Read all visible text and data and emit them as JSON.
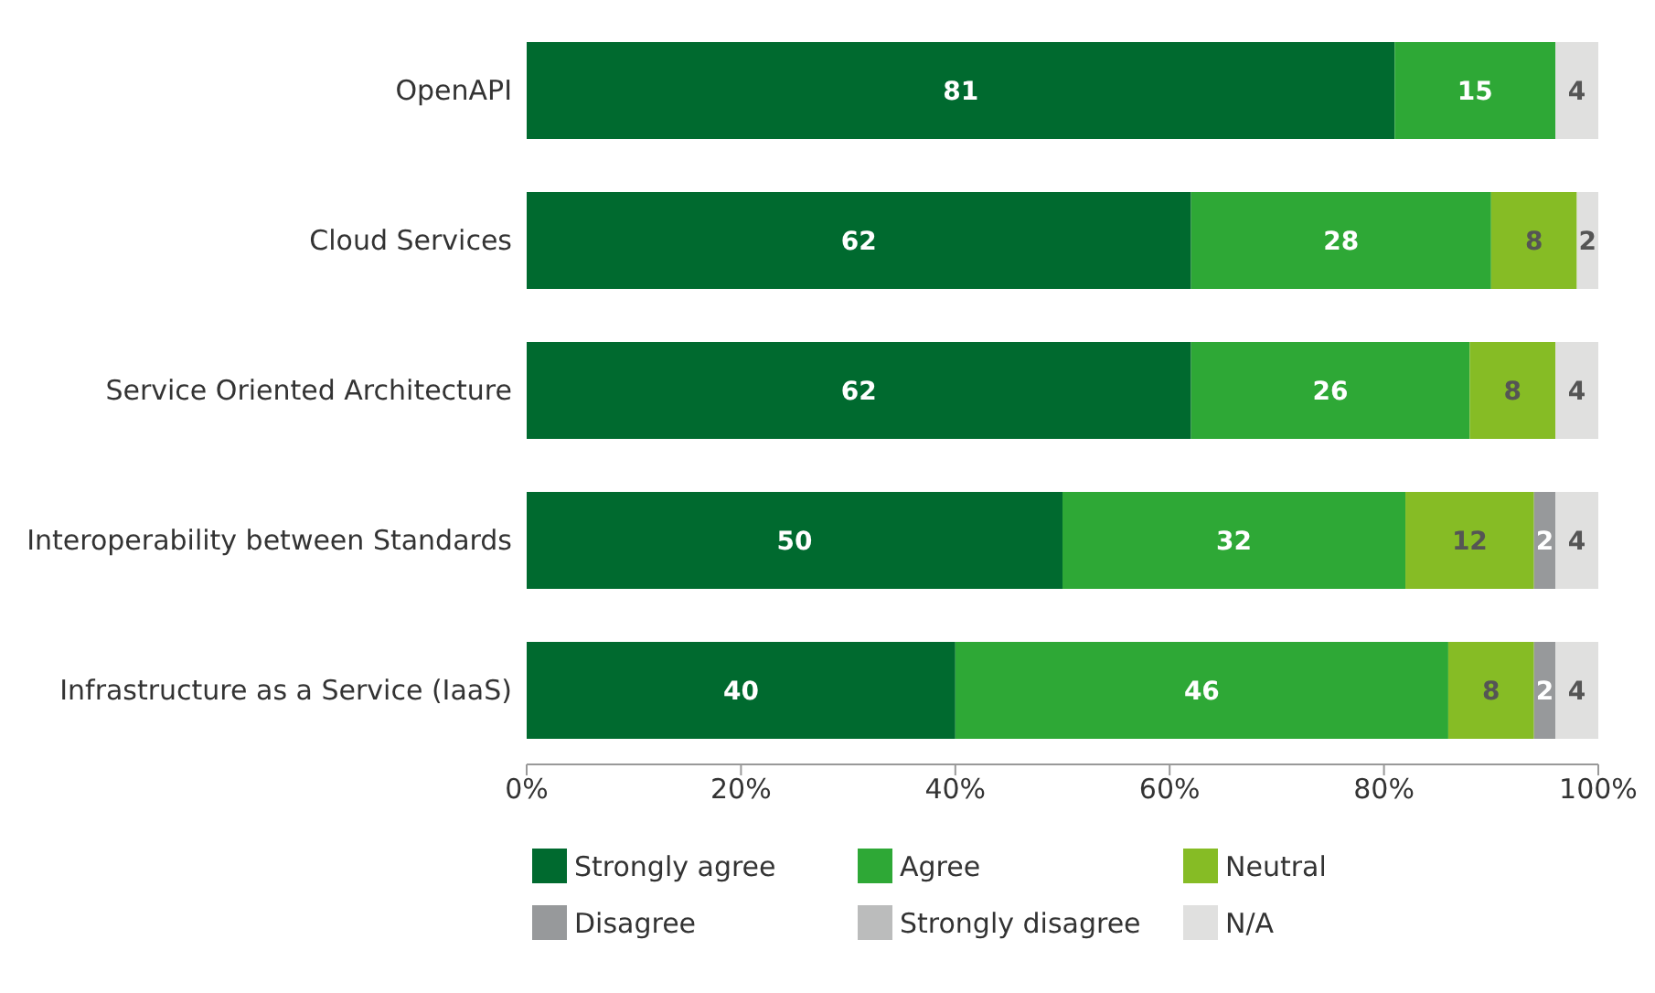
{
  "chart_data": {
    "type": "bar",
    "orientation": "horizontal",
    "stacked": true,
    "data_labels": true,
    "grid": false,
    "legend": "bottom",
    "categories": [
      "OpenAPI",
      "Cloud Services",
      "Service Oriented Architecture",
      "Interoperability between Standards",
      "Infrastructure as a Service (IaaS)"
    ],
    "xlim": [
      0,
      100
    ],
    "xticks": [
      {
        "value": 0,
        "label": "0%"
      },
      {
        "value": 20,
        "label": "20%"
      },
      {
        "value": 40,
        "label": "40%"
      },
      {
        "value": 60,
        "label": "60%"
      },
      {
        "value": 80,
        "label": "80%"
      },
      {
        "value": 100,
        "label": "100%"
      }
    ],
    "series": [
      {
        "name": "Strongly agree",
        "color": "#006a2f",
        "values": [
          81,
          62,
          62,
          50,
          40
        ]
      },
      {
        "name": "Agree",
        "color": "#2ea836",
        "values": [
          15,
          28,
          26,
          32,
          46
        ]
      },
      {
        "name": "Neutral",
        "color": "#86bc25",
        "values": [
          null,
          8,
          8,
          12,
          8
        ]
      },
      {
        "name": "Disagree",
        "color": "#97999b",
        "values": [
          null,
          null,
          null,
          2,
          2
        ]
      },
      {
        "name": "Strongly disagree",
        "color": "#bbbcbc",
        "values": [
          null,
          null,
          null,
          null,
          null
        ]
      },
      {
        "name": "N/A",
        "color": "#e0e0df",
        "values": [
          4,
          2,
          4,
          4,
          4
        ]
      }
    ]
  }
}
